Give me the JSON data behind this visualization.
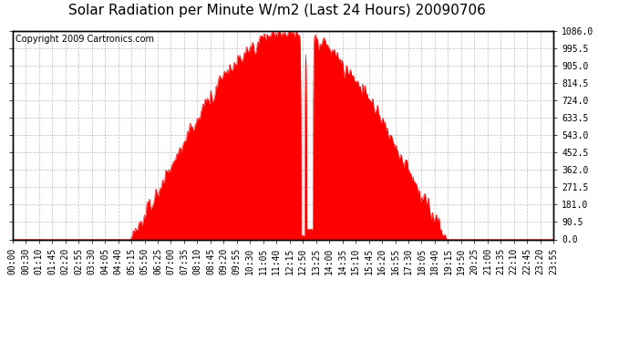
{
  "title": "Solar Radiation per Minute W/m2 (Last 24 Hours) 20090706",
  "copyright": "Copyright 2009 Cartronics.com",
  "y_ticks": [
    0.0,
    90.5,
    181.0,
    271.5,
    362.0,
    452.5,
    543.0,
    633.5,
    724.0,
    814.5,
    905.0,
    995.5,
    1086.0
  ],
  "ylim": [
    0.0,
    1086.0
  ],
  "x_tick_labels": [
    "00:00",
    "00:30",
    "01:10",
    "01:45",
    "02:20",
    "02:55",
    "03:30",
    "04:05",
    "04:40",
    "05:15",
    "05:50",
    "06:25",
    "07:00",
    "07:35",
    "08:10",
    "08:45",
    "09:20",
    "09:55",
    "10:30",
    "11:05",
    "11:40",
    "12:15",
    "12:50",
    "13:25",
    "14:00",
    "14:35",
    "15:10",
    "15:45",
    "16:20",
    "16:55",
    "17:30",
    "18:05",
    "18:40",
    "19:15",
    "19:50",
    "20:25",
    "21:00",
    "21:35",
    "22:10",
    "22:45",
    "23:20",
    "23:55"
  ],
  "fill_color": "#FF0000",
  "line_color": "#FF0000",
  "dashed_line_color": "#FF0000",
  "background_color": "#FFFFFF",
  "grid_color": "#BEBEBE",
  "title_fontsize": 11,
  "copyright_fontsize": 7,
  "tick_fontsize": 7,
  "sunrise": 315,
  "sunset": 1155,
  "peak": 750,
  "max_val": 1086.0
}
